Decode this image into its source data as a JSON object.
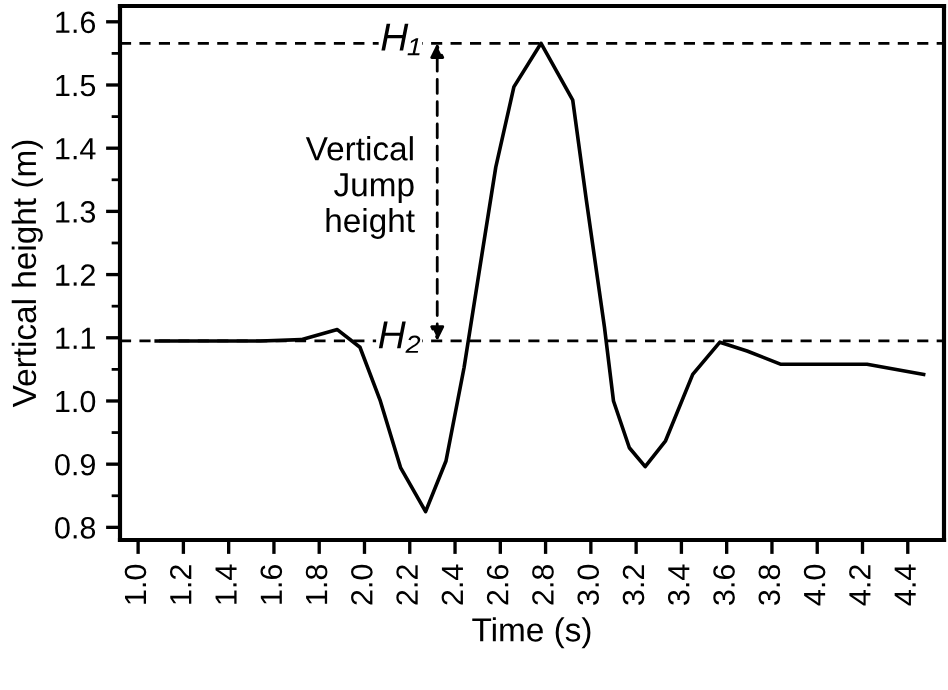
{
  "chart_data": {
    "type": "line",
    "xlabel": "Time (s)",
    "ylabel": "Vertical height (m)",
    "x": [
      1.08,
      1.54,
      1.72,
      1.88,
      1.98,
      2.07,
      2.16,
      2.27,
      2.36,
      2.44,
      2.51,
      2.58,
      2.66,
      2.78,
      2.92,
      2.98,
      3.06,
      3.1,
      3.17,
      3.24,
      3.33,
      3.45,
      3.57,
      3.69,
      3.84,
      3.98,
      4.22,
      4.47
    ],
    "series": [
      {
        "color": "#000000",
        "values": [
          1.095,
          1.095,
          1.097,
          1.113,
          1.085,
          1.0,
          0.894,
          0.825,
          0.905,
          1.053,
          1.212,
          1.37,
          1.497,
          1.566,
          1.476,
          1.318,
          1.117,
          1.0,
          0.926,
          0.896,
          0.937,
          1.042,
          1.093,
          1.079,
          1.058,
          1.058,
          1.058,
          1.042
        ]
      }
    ],
    "xlim": [
      0.92,
      4.56
    ],
    "ylim": [
      0.78,
      1.625
    ],
    "xticks": [
      {
        "value": 1.0,
        "label": "1.0"
      },
      1.2,
      1.4,
      1.6,
      1.8,
      {
        "value": 2.0,
        "label": "2.0"
      },
      2.2,
      2.4,
      2.6,
      2.8,
      {
        "value": 3.0,
        "label": "3.0"
      },
      3.2,
      3.4,
      3.6,
      3.8,
      {
        "value": 4.0,
        "label": "4.0"
      },
      4.2,
      4.4
    ],
    "yticks": [
      0.8,
      0.9,
      {
        "value": 1.0,
        "label": "1.0"
      },
      1.1,
      1.2,
      1.3,
      1.4,
      1.5,
      1.6
    ],
    "ref_lines": [
      {
        "axis": "y",
        "value": 1.566,
        "label": "H₁",
        "line_style": "dashed",
        "color": "#000000"
      },
      {
        "axis": "y",
        "value": 1.095,
        "label": "H₂",
        "line_style": "dashed",
        "color": "#000000"
      }
    ],
    "annotations": [
      "Vertical\nJump\nheight"
    ],
    "grid": false,
    "marker": "none",
    "line_style": "solid"
  }
}
